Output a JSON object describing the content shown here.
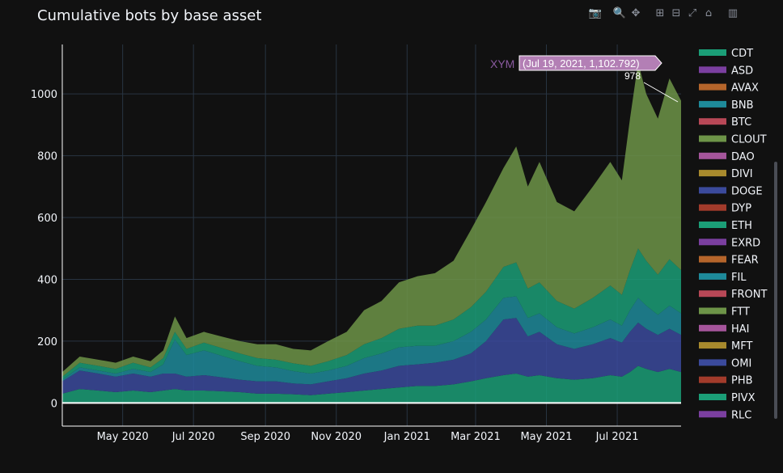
{
  "title": "Cumulative bots by base asset",
  "modebar": {
    "buttons": [
      {
        "name": "camera-icon",
        "glyph": "📷"
      },
      {
        "name": "zoom-icon",
        "glyph": "🔍"
      },
      {
        "name": "pan-icon",
        "glyph": "✥"
      },
      {
        "name": "zoom-in-icon",
        "glyph": "⊞"
      },
      {
        "name": "zoom-out-icon",
        "glyph": "⊟"
      },
      {
        "name": "autoscale-icon",
        "glyph": "⤢"
      },
      {
        "name": "home-icon",
        "glyph": "⌂"
      },
      {
        "name": "plotly-logo-icon",
        "glyph": "▥"
      }
    ]
  },
  "hover": {
    "series": "XYM",
    "text": "(Jul 19, 2021, 1,102.792)",
    "last_value_label": "978"
  },
  "legend_colors": [
    "#1b9e77",
    "#7b3fa0",
    "#b5652b",
    "#1e8a9a",
    "#b84857",
    "#6d9448",
    "#a5559b",
    "#a88a2d",
    "#3b4a9c",
    "#a23b2b",
    "#1b9e77",
    "#7b3fa0",
    "#b5652b",
    "#1e8a9a",
    "#b84857",
    "#6d9448",
    "#a5559b",
    "#a88a2d",
    "#3b4a9c",
    "#a23b2b",
    "#1b9e77",
    "#7b3fa0"
  ],
  "chart_data": {
    "type": "area",
    "title": "Cumulative bots by base asset",
    "xlabel": "",
    "ylabel": "",
    "x_ticks": [
      "May 2020",
      "Jul 2020",
      "Sep 2020",
      "Nov 2020",
      "Jan 2021",
      "Mar 2021",
      "May 2021",
      "Jul 2021"
    ],
    "x_range": [
      "2020-03-10",
      "2021-08-25"
    ],
    "y_ticks": [
      0,
      200,
      400,
      600,
      800,
      1000
    ],
    "ylim": [
      -75,
      1160
    ],
    "grid": true,
    "legend_position": "right",
    "legend": [
      "CDT",
      "ASD",
      "AVAX",
      "BNB",
      "BTC",
      "CLOUT",
      "DAO",
      "DIVI",
      "DOGE",
      "DYP",
      "ETH",
      "EXRD",
      "FEAR",
      "FIL",
      "FRONT",
      "FTT",
      "HAI",
      "MFT",
      "OMI",
      "PHB",
      "PIVX",
      "RLC"
    ],
    "total_dates": [
      "2020-03-10",
      "2020-03-25",
      "2020-04-10",
      "2020-04-25",
      "2020-05-10",
      "2020-05-25",
      "2020-06-05",
      "2020-06-15",
      "2020-06-25",
      "2020-07-10",
      "2020-07-25",
      "2020-08-10",
      "2020-08-25",
      "2020-09-10",
      "2020-09-25",
      "2020-10-10",
      "2020-10-25",
      "2020-11-10",
      "2020-11-25",
      "2020-12-10",
      "2020-12-25",
      "2021-01-10",
      "2021-01-25",
      "2021-02-10",
      "2021-02-25",
      "2021-03-10",
      "2021-03-25",
      "2021-04-05",
      "2021-04-15",
      "2021-04-25",
      "2021-05-10",
      "2021-05-25",
      "2021-06-10",
      "2021-06-25",
      "2021-07-05",
      "2021-07-12",
      "2021-07-19",
      "2021-07-26",
      "2021-08-05",
      "2021-08-15",
      "2021-08-25"
    ],
    "total_values": [
      100,
      150,
      140,
      130,
      150,
      135,
      170,
      280,
      210,
      230,
      215,
      200,
      190,
      190,
      175,
      170,
      200,
      230,
      300,
      330,
      390,
      410,
      420,
      460,
      560,
      650,
      760,
      830,
      700,
      780,
      650,
      620,
      700,
      780,
      720,
      920,
      1102,
      1000,
      920,
      1050,
      978
    ],
    "series": [
      {
        "name": "CDT",
        "values": [
          30,
          45,
          40,
          35,
          40,
          35,
          40,
          45,
          40,
          40,
          38,
          35,
          30,
          30,
          28,
          25,
          30,
          35,
          40,
          45,
          50,
          55,
          55,
          60,
          70,
          80,
          90,
          95,
          85,
          90,
          80,
          75,
          80,
          90,
          85,
          100,
          120,
          110,
          100,
          110,
          100
        ]
      },
      {
        "name": "DOGE",
        "values": [
          40,
          60,
          55,
          50,
          55,
          50,
          55,
          50,
          45,
          50,
          45,
          40,
          40,
          40,
          35,
          35,
          40,
          45,
          55,
          60,
          70,
          70,
          75,
          80,
          90,
          120,
          180,
          180,
          130,
          140,
          110,
          100,
          110,
          120,
          110,
          130,
          140,
          130,
          120,
          130,
          120
        ]
      },
      {
        "name": "BNB",
        "values": [
          5,
          10,
          10,
          10,
          15,
          15,
          30,
          110,
          70,
          80,
          70,
          60,
          50,
          45,
          40,
          35,
          35,
          40,
          50,
          55,
          60,
          60,
          55,
          60,
          70,
          70,
          70,
          70,
          60,
          60,
          55,
          50,
          55,
          60,
          55,
          70,
          80,
          75,
          65,
          75,
          70
        ]
      },
      {
        "name": "ETH",
        "values": [
          10,
          15,
          15,
          15,
          20,
          15,
          20,
          25,
          20,
          25,
          25,
          25,
          25,
          25,
          25,
          25,
          30,
          35,
          45,
          50,
          60,
          65,
          65,
          70,
          80,
          90,
          100,
          110,
          95,
          100,
          85,
          80,
          95,
          110,
          100,
          130,
          160,
          145,
          130,
          150,
          140
        ]
      },
      {
        "name": "CLOUT",
        "values": [
          15,
          20,
          20,
          20,
          20,
          20,
          25,
          50,
          35,
          35,
          37,
          40,
          45,
          50,
          47,
          50,
          65,
          75,
          110,
          120,
          150,
          160,
          170,
          190,
          250,
          290,
          320,
          375,
          330,
          390,
          320,
          315,
          360,
          400,
          370,
          490,
          602,
          540,
          505,
          585,
          548
        ]
      }
    ]
  }
}
